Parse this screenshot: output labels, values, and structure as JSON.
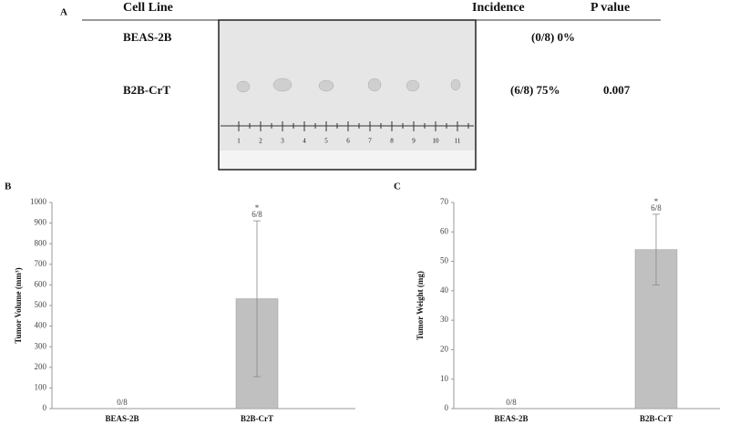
{
  "panel_a": {
    "label": "A",
    "headers": [
      "Cell Line",
      "Incidence",
      "P value"
    ],
    "rows": [
      {
        "cell_line": "BEAS-2B",
        "incidence": "(0/8) 0%"
      },
      {
        "cell_line": "B2B-CrT",
        "incidence": "(6/8) 75%",
        "p_value": "0.007"
      }
    ],
    "ruler_labels": [
      1,
      2,
      3,
      4,
      5,
      6,
      7,
      8,
      9,
      10,
      11
    ]
  },
  "chart_data": [
    {
      "type": "bar",
      "label": "B",
      "ylabel": "Tumor Volume (mm³)",
      "categories": [
        "BEAS-2B",
        "B2B-CrT"
      ],
      "values": [
        0,
        533
      ],
      "errors": [
        0,
        378
      ],
      "annotations": [
        "0/8",
        "6/8"
      ],
      "markers": [
        null,
        "*"
      ],
      "color": "#c0c0c0",
      "ylim": [
        0,
        1000
      ],
      "yticks": [
        0,
        100,
        200,
        300,
        400,
        500,
        600,
        700,
        800,
        900,
        1000
      ]
    },
    {
      "type": "bar",
      "label": "C",
      "ylabel": "Tumor Weight (mg)",
      "categories": [
        "BEAS-2B",
        "B2B-CrT"
      ],
      "values": [
        0,
        54
      ],
      "errors": [
        0,
        12
      ],
      "annotations": [
        "0/8",
        "6/8"
      ],
      "markers": [
        null,
        "*"
      ],
      "color": "#c0c0c0",
      "ylim": [
        0,
        70
      ],
      "yticks": [
        0,
        10,
        20,
        30,
        40,
        50,
        60,
        70
      ]
    }
  ]
}
